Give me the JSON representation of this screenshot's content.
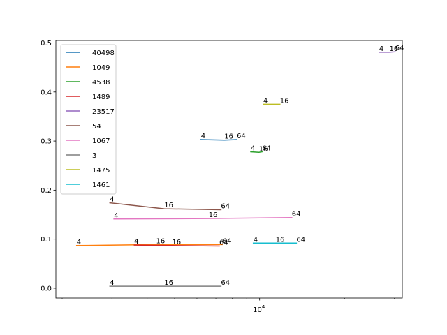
{
  "chart_data": {
    "type": "line",
    "x_scale": "log",
    "xlim": [
      1900,
      32000
    ],
    "ylim": [
      -0.02,
      0.505
    ],
    "x_ticks": [
      {
        "value": 10000,
        "base": "10",
        "exp": "4"
      }
    ],
    "x_minor_ticks": [
      2000,
      3000,
      4000,
      5000,
      6000,
      7000,
      8000,
      9000,
      20000,
      30000
    ],
    "y_ticks": [
      {
        "value": 0.0,
        "label": "0.0"
      },
      {
        "value": 0.1,
        "label": "0.1"
      },
      {
        "value": 0.2,
        "label": "0.2"
      },
      {
        "value": 0.3,
        "label": "0.3"
      },
      {
        "value": 0.4,
        "label": "0.4"
      },
      {
        "value": 0.5,
        "label": "0.5"
      }
    ],
    "legend_position": "top-left",
    "grid": false,
    "series": [
      {
        "name": "40498",
        "color": "#1f77b4",
        "points": [
          {
            "x": 6200,
            "y": 0.303,
            "label": "4"
          },
          {
            "x": 7500,
            "y": 0.302,
            "label": "16"
          },
          {
            "x": 8300,
            "y": 0.303,
            "label": "64"
          }
        ]
      },
      {
        "name": "1049",
        "color": "#ff7f0e",
        "points": [
          {
            "x": 2250,
            "y": 0.087,
            "label": "4"
          },
          {
            "x": 4300,
            "y": 0.089,
            "label": "16"
          },
          {
            "x": 7400,
            "y": 0.089,
            "label": "64"
          }
        ]
      },
      {
        "name": "4538",
        "color": "#2ca02c",
        "points": [
          {
            "x": 9300,
            "y": 0.278,
            "label": "4"
          },
          {
            "x": 9950,
            "y": 0.277,
            "label": "16"
          },
          {
            "x": 10200,
            "y": 0.278,
            "label": "64"
          }
        ]
      },
      {
        "name": "1489",
        "color": "#d62728",
        "points": [
          {
            "x": 3600,
            "y": 0.088,
            "label": "4"
          },
          {
            "x": 4900,
            "y": 0.087,
            "label": "16"
          },
          {
            "x": 7200,
            "y": 0.086,
            "label": "64"
          }
        ]
      },
      {
        "name": "23517",
        "color": "#9467bd",
        "points": [
          {
            "x": 26500,
            "y": 0.481,
            "label": "4"
          },
          {
            "x": 28800,
            "y": 0.481,
            "label": "16"
          },
          {
            "x": 30200,
            "y": 0.482,
            "label": "64"
          }
        ]
      },
      {
        "name": "54",
        "color": "#8c564b",
        "points": [
          {
            "x": 2950,
            "y": 0.174,
            "label": "4"
          },
          {
            "x": 4600,
            "y": 0.162,
            "label": "16"
          },
          {
            "x": 7300,
            "y": 0.16,
            "label": "64"
          }
        ]
      },
      {
        "name": "1067",
        "color": "#e377c2",
        "points": [
          {
            "x": 3050,
            "y": 0.141,
            "label": "4"
          },
          {
            "x": 6600,
            "y": 0.142,
            "label": "16"
          },
          {
            "x": 13000,
            "y": 0.144,
            "label": "64"
          }
        ]
      },
      {
        "name": "3",
        "color": "#7f7f7f",
        "points": [
          {
            "x": 2950,
            "y": 0.004,
            "label": "4"
          },
          {
            "x": 4600,
            "y": 0.004,
            "label": "16"
          },
          {
            "x": 7300,
            "y": 0.004,
            "label": "64"
          }
        ]
      },
      {
        "name": "1475",
        "color": "#bcbd22",
        "points": [
          {
            "x": 10300,
            "y": 0.375,
            "label": "4"
          },
          {
            "x": 11800,
            "y": 0.375,
            "label": "16"
          }
        ]
      },
      {
        "name": "1461",
        "color": "#17becf",
        "points": [
          {
            "x": 9500,
            "y": 0.092,
            "label": "4"
          },
          {
            "x": 11400,
            "y": 0.092,
            "label": "16"
          },
          {
            "x": 13500,
            "y": 0.092,
            "label": "64"
          }
        ]
      }
    ]
  }
}
